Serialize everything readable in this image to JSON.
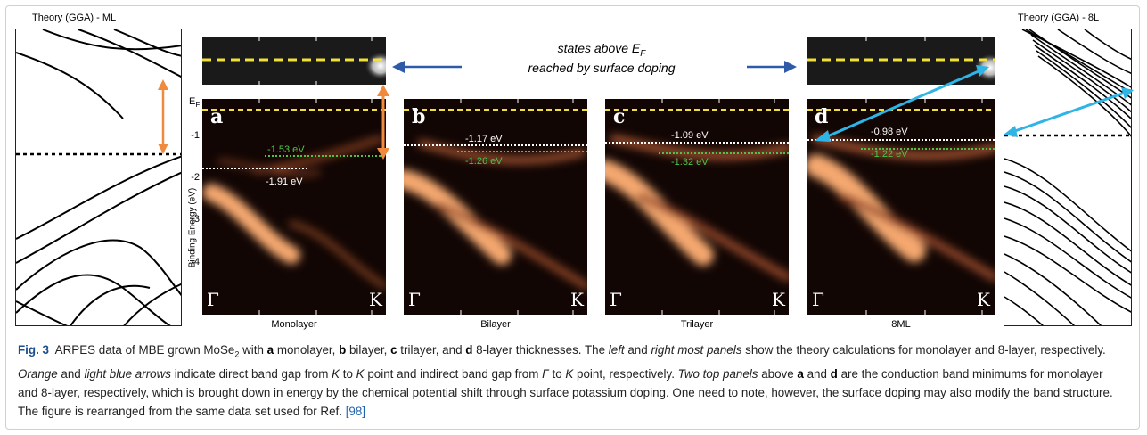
{
  "figure": {
    "theory_left_title": "Theory (GGA) - ML",
    "theory_right_title": "Theory (GGA) - 8L",
    "annotation_line1": "states above E",
    "annotation_sub": "F",
    "annotation_line2": "reached by surface doping",
    "y_axis_label": "Binding Energy (eV)",
    "ef_label": "E",
    "ef_sub": "F",
    "y_ticks": [
      "-1",
      "-2",
      "-3",
      "-4"
    ],
    "gamma_symbol": "Γ",
    "k_symbol": "K",
    "panels": [
      {
        "letter": "a",
        "name": "Monolayer",
        "white_ev": "-1.91 eV",
        "green_ev": "-1.53 eV"
      },
      {
        "letter": "b",
        "name": "Bilayer",
        "white_ev": "-1.17 eV",
        "green_ev": "-1.26 eV"
      },
      {
        "letter": "c",
        "name": "Trilayer",
        "white_ev": "-1.09 eV",
        "green_ev": "-1.32 eV"
      },
      {
        "letter": "d",
        "name": "8ML",
        "white_ev": "-0.98 eV",
        "green_ev": "-1.22 eV"
      }
    ],
    "colors": {
      "orange_arrow": "#f08a3c",
      "blue_arrow": "#2fb4e6",
      "dark_blue_arrow": "#2e5aa8",
      "yellow_dash": "#f2e03a",
      "green_dot": "#4fc24a",
      "band_glow": "#f5a870"
    }
  },
  "caption": {
    "label": "Fig. 3",
    "t1": "ARPES data of MBE grown MoSe",
    "t1_sub": "2",
    "t2": " with ",
    "a": "a",
    "t3": " monolayer, ",
    "b": "b",
    "t4": " bilayer, ",
    "c": "c",
    "t5": " trilayer, and ",
    "d": "d",
    "t6": " 8-layer thicknesses. The ",
    "i_left": "left",
    "t7": " and ",
    "i_right": "right most panels",
    "t8": " show the theory calculations for monolayer and 8-layer, respectively. ",
    "i_orange": "Orange",
    "t9": " and ",
    "i_blue": "light blue arrows",
    "t10": " indicate direct band gap from ",
    "i_k1": "K",
    "t11": " to ",
    "i_k2": "K",
    "t12": " point and indirect band gap from ",
    "i_gamma": "Γ",
    "t13": " to ",
    "i_k3": "K",
    "t14": " point, respectively. ",
    "i_two": "Two top panels",
    "t15": " above ",
    "a2": "a",
    "t16": " and ",
    "d2": "d",
    "t17": " are the conduction band minimums for monolayer and 8-layer, respectively, which is brought down in energy by the chemical potential shift through surface potassium doping. One need to note, however, the surface doping may also modify the band structure. The figure is rearranged from the same data set used for Ref. ",
    "ref": "[98]"
  }
}
